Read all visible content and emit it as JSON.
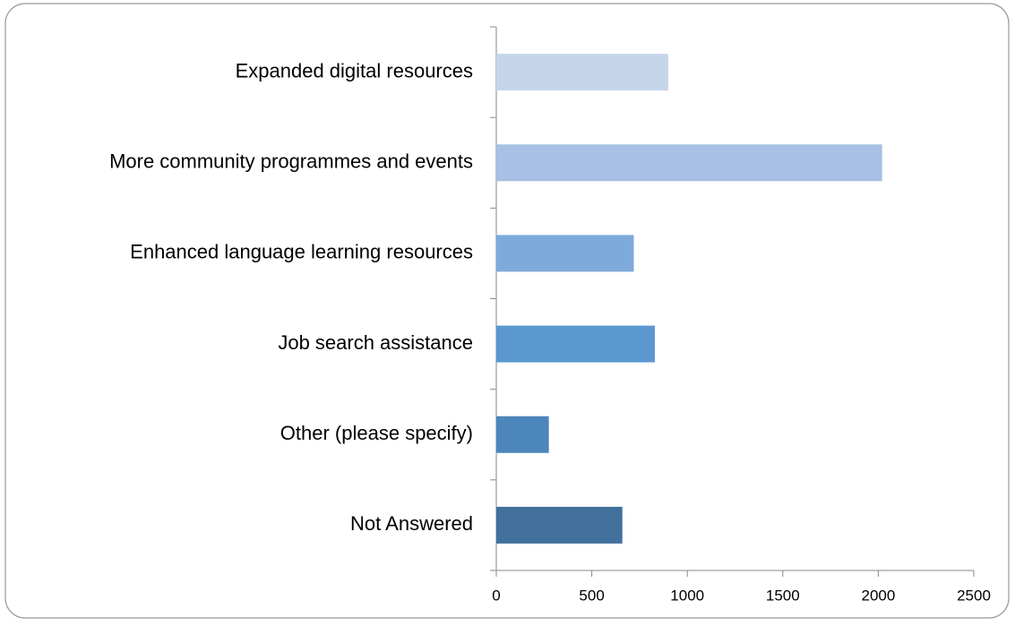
{
  "chart_data": {
    "type": "bar",
    "orientation": "horizontal",
    "categories": [
      "Expanded digital resources",
      "More community programmes and events",
      "Enhanced language learning resources",
      "Job search assistance",
      "Other (please specify)",
      "Not Answered"
    ],
    "values": [
      900,
      2020,
      720,
      830,
      275,
      660
    ],
    "colors": [
      "#c5d5ea",
      "#a7c0e3",
      "#7eaadb",
      "#5b98cf",
      "#4d86bb",
      "#41719c"
    ],
    "xlim": [
      0,
      2500
    ],
    "xticks": [
      0,
      500,
      1000,
      1500,
      2000,
      2500
    ],
    "grid": false
  }
}
